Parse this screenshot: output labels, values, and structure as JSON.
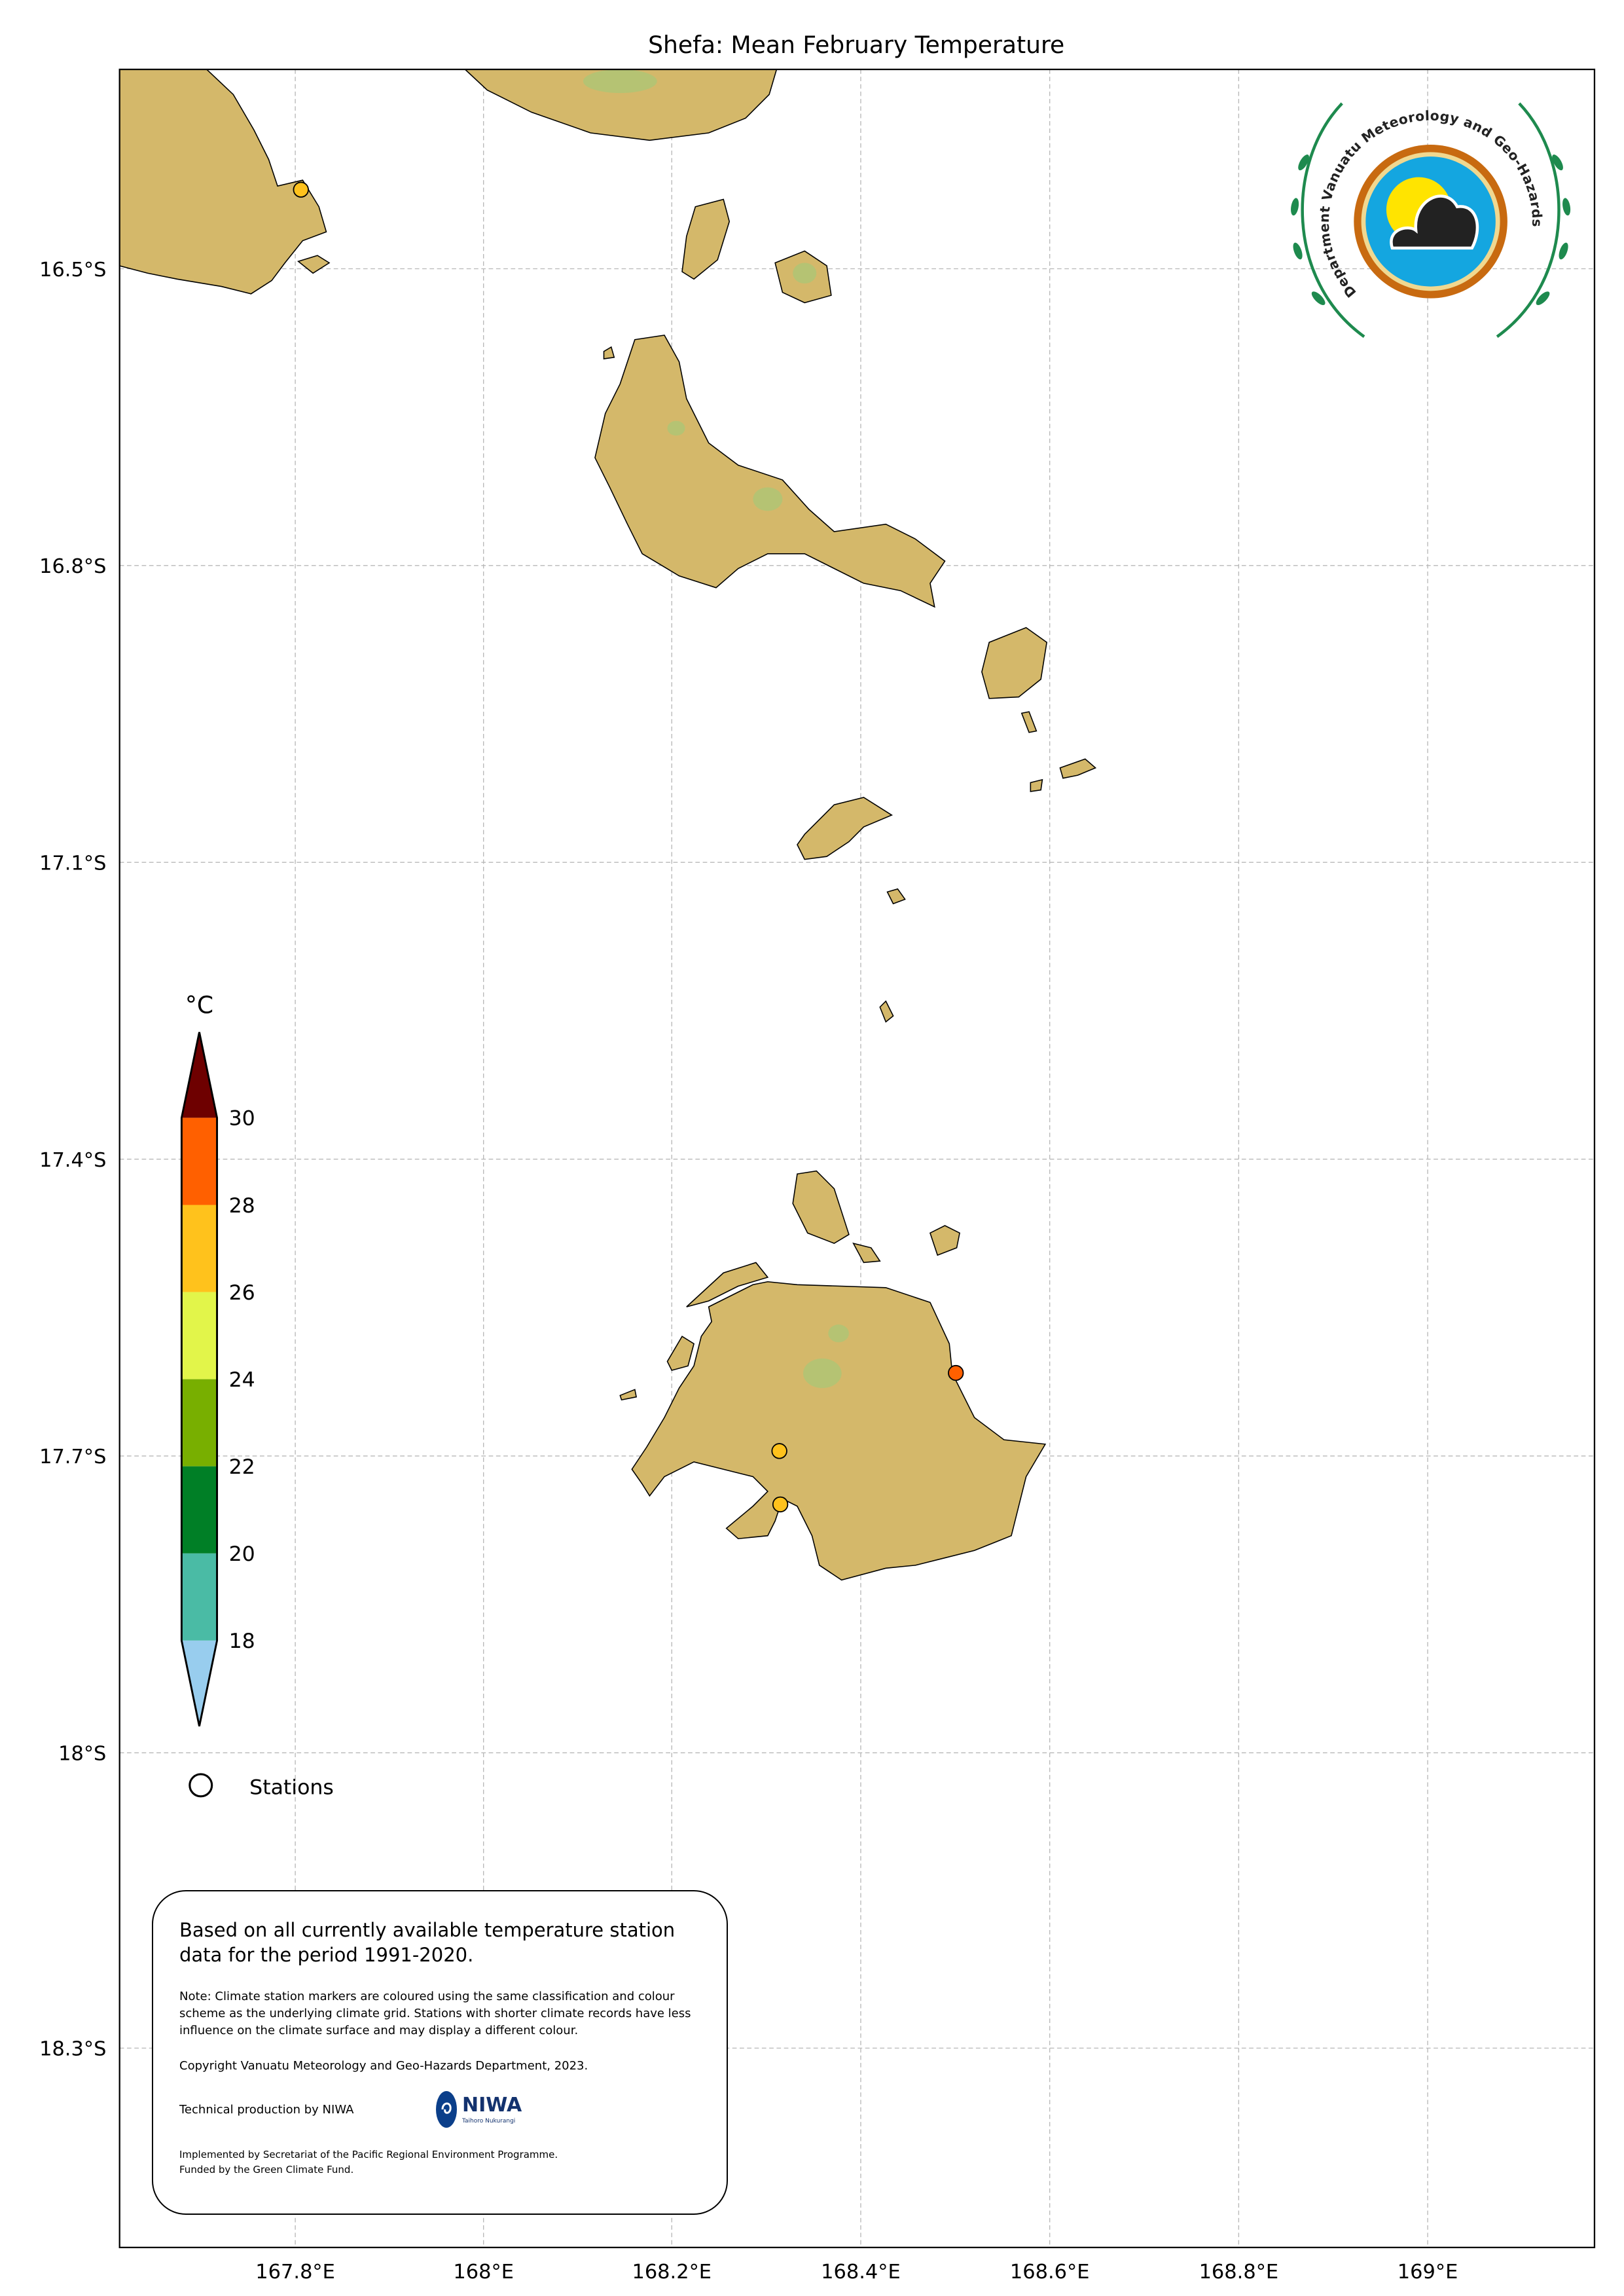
{
  "title": "Shefa: Mean February Temperature",
  "map": {
    "lon_ticks": [
      "167.8°E",
      "168°E",
      "168.2°E",
      "168.4°E",
      "168.6°E",
      "168.8°E",
      "169°E"
    ],
    "lat_ticks": [
      "16.5°S",
      "16.8°S",
      "17.1°S",
      "17.4°S",
      "17.7°S",
      "18°S",
      "18.3°S"
    ],
    "lon_range": [
      167.614,
      169.177
    ],
    "lat_range": [
      -16.299,
      -18.502
    ],
    "land_color": "#d4b86a"
  },
  "colorbar": {
    "unit": "°C",
    "labels": [
      "30",
      "28",
      "26",
      "24",
      "22",
      "20",
      "18"
    ],
    "bins": [
      {
        "range": ">30",
        "color": "#6e0000"
      },
      {
        "range": "28-30",
        "color": "#ff6000"
      },
      {
        "range": "26-28",
        "color": "#ffc21c"
      },
      {
        "range": "24-26",
        "color": "#e2f54a"
      },
      {
        "range": "22-24",
        "color": "#78af00"
      },
      {
        "range": "20-22",
        "color": "#007f26"
      },
      {
        "range": "18-20",
        "color": "#4abba5"
      },
      {
        "range": "<18",
        "color": "#98cdee"
      }
    ]
  },
  "legend": {
    "stations_label": "Stations"
  },
  "stations": [
    {
      "lon": 167.806,
      "lat": -16.42,
      "color": "#ffc21c"
    },
    {
      "lon": 168.5,
      "lat": -17.617,
      "color": "#ff6000"
    },
    {
      "lon": 168.313,
      "lat": -17.696,
      "color": "#ffc21c"
    },
    {
      "lon": 168.314,
      "lat": -17.75,
      "color": "#ffc21c"
    }
  ],
  "info": {
    "main": "Based on all currently available temperature station data for the period 1991-2020.",
    "note": "Note: Climate station markers are coloured using the same classification and colour scheme as the underlying climate grid. Stations with shorter climate records have less influence on the climate surface and may display a different colour.",
    "copyright": "Copyright Vanuatu Meteorology and Geo-Hazards Department, 2023.",
    "technical": "Technical production by NIWA",
    "niwa_logo": "NIWA",
    "niwa_sub": "Taihoro Nukurangi",
    "implemented": "Implemented by Secretariat of the Pacific Regional Environment Programme.",
    "funded": "Funded by the Green Climate Fund."
  },
  "logo": {
    "text": "Department Vanuatu Meteorology and Geo-Hazards"
  }
}
